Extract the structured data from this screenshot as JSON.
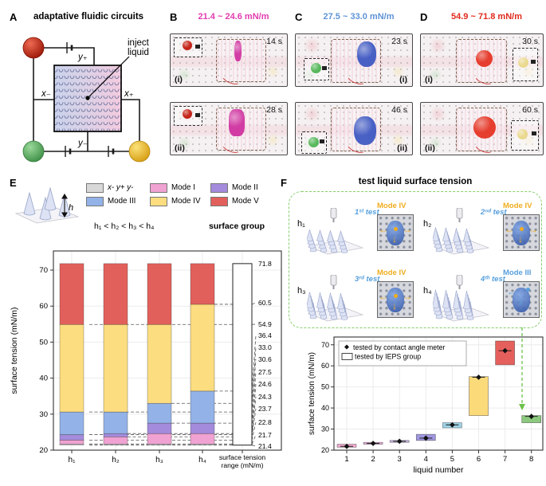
{
  "panel_a": {
    "label": "A",
    "title": "adaptative fluidic circuits",
    "inject_line1": "inject",
    "inject_line2": "liquid",
    "electrode_top": "y₊",
    "electrode_bottom": "y₋",
    "electrode_left": "x₋",
    "electrode_right": "x₊",
    "node_colors": {
      "top_left": "#c8281b",
      "bottom_left": "#6cbf6e",
      "bottom_right": "#f4c430"
    }
  },
  "panels_bcd": [
    {
      "label": "B",
      "range": "21.4 ~ 24.6 mN/m",
      "accent": "#e23caf",
      "liquid": "#cf2f9f",
      "inset_drop": "#c42318",
      "frames": [
        {
          "sub": "(i)",
          "time": "14 s"
        },
        {
          "sub": "(ii)",
          "time": "28 s"
        }
      ]
    },
    {
      "label": "C",
      "range": "27.5 ~ 33.0 mN/m",
      "accent": "#5e93d6",
      "liquid": "#3a55c2",
      "inset_drop": "#58b85c",
      "frames": [
        {
          "sub": "(i)",
          "time": "23 s"
        },
        {
          "sub": "(ii)",
          "time": "46 s"
        }
      ]
    },
    {
      "label": "D",
      "range": "54.9 ~ 71.8 mN/m",
      "accent": "#e02a1c",
      "liquid": "#e5301f",
      "inset_drop": "#ead98e",
      "frames": [
        {
          "sub": "(i)",
          "time": "30 s"
        },
        {
          "sub": "(ii)",
          "time": "60 s"
        }
      ]
    }
  ],
  "panel_e": {
    "label": "E",
    "relation": "h₁ < h₂ < h₃ < h₄",
    "surface_group": "surface group",
    "h_symbol": "h",
    "legend": [
      {
        "label": "x- y+ y-",
        "color": "#d8d8d8",
        "italic": true
      },
      {
        "label": "Mode I",
        "color": "#f0a2d2"
      },
      {
        "label": "Mode II",
        "color": "#a48bdc"
      },
      {
        "label": "Mode III",
        "color": "#93b2e7"
      },
      {
        "label": "Mode IV",
        "color": "#fcdd80"
      },
      {
        "label": "Mode V",
        "color": "#e2605c"
      }
    ]
  },
  "panel_f": {
    "label": "F",
    "title": "test liquid surface tension",
    "test_label_color": "#58a0dc",
    "tests": [
      {
        "h": "h₁",
        "test": "1ˢᵗ test",
        "mode": "Mode IV",
        "mode_color": "#f0ad1f"
      },
      {
        "h": "h₂",
        "test": "2ⁿᵈ test",
        "mode": "Mode IV",
        "mode_color": "#f0ad1f"
      },
      {
        "h": "h₃",
        "test": "3ʳᵈ test",
        "mode": "Mode IV",
        "mode_color": "#f0ad1f"
      },
      {
        "h": "h₄",
        "test": "4ᵗʰ test",
        "mode": "Mode III",
        "mode_color": "#58a0dc"
      }
    ]
  },
  "chart_data": [
    {
      "type": "bar",
      "stacked": true,
      "title": "",
      "xlabel": "",
      "ylabel": "surface tension (mN/m)",
      "ylim": [
        20,
        73
      ],
      "yticks": [
        20,
        30,
        40,
        50,
        60,
        70
      ],
      "categories": [
        "h₁",
        "h₂",
        "h₃",
        "h₄"
      ],
      "series": [
        {
          "name": "x- y+ y-",
          "color": "#d8d8d8",
          "ranges": [
            [
              21.4,
              21.7
            ],
            [
              21.4,
              21.7
            ],
            [
              21.4,
              21.7
            ],
            [
              21.4,
              21.7
            ]
          ]
        },
        {
          "name": "Mode I",
          "color": "#f0a2d2",
          "ranges": [
            [
              21.7,
              22.8
            ],
            [
              21.7,
              23.7
            ],
            [
              21.7,
              24.6
            ],
            [
              21.7,
              24.6
            ]
          ]
        },
        {
          "name": "Mode II",
          "color": "#a48bdc",
          "ranges": [
            [
              22.8,
              24.3
            ],
            [
              23.7,
              24.6
            ],
            [
              24.6,
              27.5
            ],
            [
              24.6,
              27.5
            ]
          ]
        },
        {
          "name": "Mode III",
          "color": "#93b2e7",
          "ranges": [
            [
              24.3,
              30.6
            ],
            [
              24.6,
              30.6
            ],
            [
              27.5,
              33.0
            ],
            [
              27.5,
              36.4
            ]
          ]
        },
        {
          "name": "Mode IV",
          "color": "#fcdd80",
          "ranges": [
            [
              30.6,
              54.9
            ],
            [
              30.6,
              54.9
            ],
            [
              33.0,
              54.9
            ],
            [
              36.4,
              60.5
            ]
          ]
        },
        {
          "name": "Mode V",
          "color": "#e2605c",
          "ranges": [
            [
              54.9,
              71.8
            ],
            [
              54.9,
              71.8
            ],
            [
              54.9,
              71.8
            ],
            [
              60.5,
              71.8
            ]
          ]
        }
      ],
      "range_column": {
        "label_line1": "surface tension",
        "label_line2": "range (mN/m)",
        "range": [
          21.4,
          71.8
        ],
        "tick_labels": [
          "71.8",
          "60.5",
          "54.9",
          "36.4",
          "33.0",
          "30.6",
          "27.5",
          "24.6",
          "24.3",
          "23.7",
          "22.8",
          "21.7",
          "21.4"
        ]
      },
      "grid": true,
      "legend_position": "top"
    },
    {
      "type": "scatter",
      "subtype": "range-box-and-point",
      "xlabel": "liquid number",
      "ylabel": "surface tension (mN/m)",
      "ylim": [
        18.5,
        73
      ],
      "yticks": [
        20,
        30,
        40,
        50,
        60,
        70
      ],
      "x": [
        1,
        2,
        3,
        4,
        5,
        6,
        7,
        8
      ],
      "legend": [
        {
          "marker": "diamond",
          "label": "tested by contact angle meter"
        },
        {
          "marker": "box",
          "label": "tested by IEPS group"
        }
      ],
      "boxes": [
        {
          "x": 1,
          "lo": 21.4,
          "hi": 22.8,
          "color": "#f3a8cf"
        },
        {
          "x": 2,
          "lo": 22.8,
          "hi": 23.7,
          "color": "#e7aeda"
        },
        {
          "x": 3,
          "lo": 23.7,
          "hi": 24.6,
          "color": "#c7b4e4"
        },
        {
          "x": 4,
          "lo": 24.6,
          "hi": 27.5,
          "color": "#9f97de"
        },
        {
          "x": 5,
          "lo": 30.6,
          "hi": 33.0,
          "color": "#9ed3e6"
        },
        {
          "x": 6,
          "lo": 36.4,
          "hi": 54.9,
          "color": "#fbda7a"
        },
        {
          "x": 7,
          "lo": 60.5,
          "hi": 71.8,
          "color": "#e5605c"
        },
        {
          "x": 8,
          "lo": 33.0,
          "hi": 36.4,
          "color": "#8cc97e"
        }
      ],
      "points": [
        {
          "x": 1,
          "y": 21.8
        },
        {
          "x": 2,
          "y": 23.2
        },
        {
          "x": 3,
          "y": 24.2
        },
        {
          "x": 4,
          "y": 25.7
        },
        {
          "x": 5,
          "y": 32.0
        },
        {
          "x": 6,
          "y": 54.6
        },
        {
          "x": 7,
          "y": 67.2
        },
        {
          "x": 8,
          "y": 36.0
        }
      ],
      "annotation_arrow_color": "#6cc24a",
      "grid": true,
      "legend_position": "top-left"
    }
  ]
}
